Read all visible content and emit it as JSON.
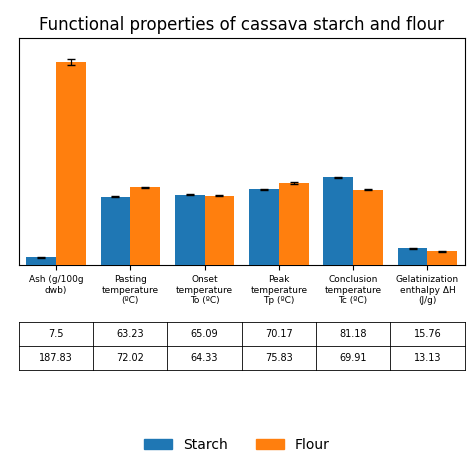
{
  "chart_data": {
    "type": "bar",
    "title": "Functional properties of cassava starch and flour",
    "categories": [
      "Ash (g/100g\ndwb)",
      "Pasting\ntemperature\n(ºC)",
      "Onset\ntemperature\nTo (ºC)",
      "Peak\ntemperature\nTp (ºC)",
      "Conclusion\ntemperature\nTc (ºC)",
      "Gelatinization\nenthalpy ΔH\n(J/g)"
    ],
    "series": [
      {
        "name": "Starch",
        "values": [
          7.5,
          63.23,
          65.09,
          70.17,
          81.18,
          15.76
        ],
        "errors": [
          0.3,
          0.5,
          0.5,
          0.5,
          0.8,
          0.3
        ]
      },
      {
        "name": "Flour",
        "values": [
          187.83,
          72.02,
          64.33,
          75.83,
          69.91,
          13.13
        ],
        "errors": [
          3.0,
          0.8,
          0.4,
          0.8,
          0.5,
          0.3
        ]
      }
    ],
    "ylim": [
      0,
      210
    ],
    "tick_labels": "x",
    "legend": "lower center"
  }
}
